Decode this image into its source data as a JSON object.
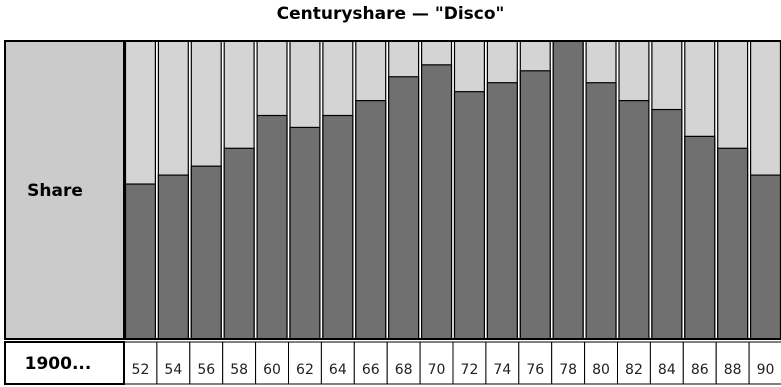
{
  "title": "Centuryshare — \"Disco\"",
  "row_label": "Share",
  "axis_prefix": "1900...",
  "colors": {
    "background_bar": "#d4d4d4",
    "share_bar": "#707070",
    "label_panel": "#cbcbcb",
    "border": "#000000"
  },
  "chart_data": {
    "type": "bar",
    "title": "Centuryshare — \"Disco\"",
    "ylabel": "Share",
    "xlabel": "1900...",
    "ylim": [
      0,
      1
    ],
    "categories": [
      "52",
      "54",
      "56",
      "58",
      "60",
      "62",
      "64",
      "66",
      "68",
      "70",
      "72",
      "74",
      "76",
      "78",
      "80",
      "82",
      "84",
      "86",
      "88",
      "90"
    ],
    "values": [
      0.52,
      0.55,
      0.58,
      0.64,
      0.75,
      0.71,
      0.75,
      0.8,
      0.88,
      0.92,
      0.83,
      0.86,
      0.9,
      1.0,
      0.86,
      0.8,
      0.77,
      0.68,
      0.64,
      0.55
    ]
  }
}
